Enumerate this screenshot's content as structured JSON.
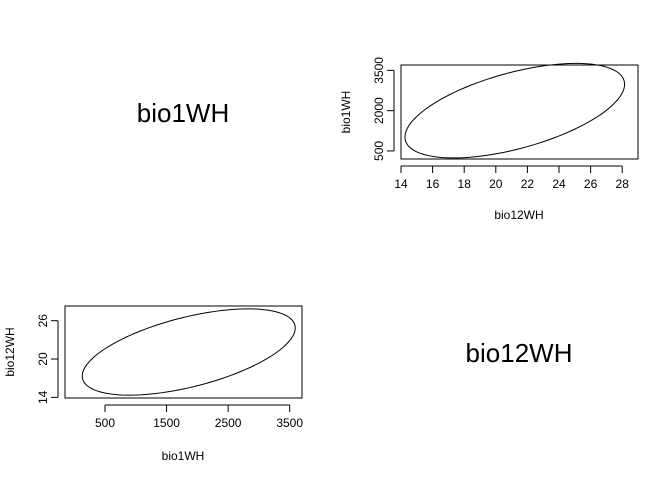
{
  "chart_data": [
    {
      "type": "diagonal-label",
      "label": "bio1WH"
    },
    {
      "type": "line",
      "subtype": "confidence-ellipse",
      "xlabel": "bio12WH",
      "ylabel": "bio1WH",
      "xlim": [
        14,
        29
      ],
      "ylim": [
        200,
        3700
      ],
      "xticks": [
        14,
        16,
        18,
        20,
        22,
        24,
        26,
        28
      ],
      "yticks": [
        500,
        2000,
        3500
      ],
      "ellipse": {
        "cx": 21.2,
        "cy": 2000,
        "rx": 6.95,
        "ry": 1760,
        "tilt": 0.98
      },
      "grid": false
    },
    {
      "type": "line",
      "subtype": "confidence-ellipse",
      "xlabel": "bio1WH",
      "ylabel": "bio12WH",
      "xlim": [
        -150,
        3700
      ],
      "ylim": [
        13.9,
        28.3
      ],
      "xticks": [
        500,
        1500,
        2500,
        3500
      ],
      "yticks": [
        14,
        20,
        26
      ],
      "ellipse": {
        "cx": 1860,
        "cy": 21.1,
        "rx": 1730,
        "ry": 6.75,
        "tilt": 0.98
      },
      "grid": false
    },
    {
      "type": "diagonal-label",
      "label": "bio12WH"
    }
  ]
}
